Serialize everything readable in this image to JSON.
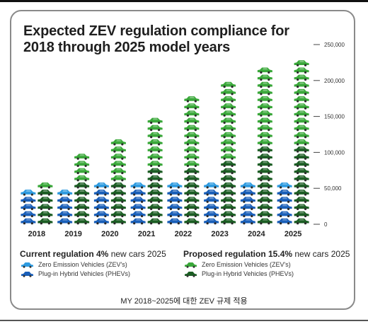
{
  "title": "Expected ZEV regulation compliance for 2018 through 2025 model years",
  "caption": "MY 2018~2025에 대한 ZEV 규제 적용",
  "legend": {
    "current": {
      "head_bold": "Current regulation 4%",
      "head_rest": " new cars 2025",
      "items": [
        {
          "label": "Zero Emission Vehicles (ZEV's)",
          "color": "#2e9be0"
        },
        {
          "label": "Plug-in Hybrid Vehicles (PHEVs)",
          "color": "#1a5fb8"
        }
      ]
    },
    "proposed": {
      "head_bold": "Proposed regulation 15.4%",
      "head_rest": " new cars 2025",
      "items": [
        {
          "label": "Zero Emission Vehicles (ZEV's)",
          "color": "#3aa83a"
        },
        {
          "label": "Plug-in Hybrid Vehicles (PHEVs)",
          "color": "#1c5e24"
        }
      ]
    }
  },
  "chart_data": {
    "type": "bar",
    "categories": [
      "2018",
      "2019",
      "2020",
      "2021",
      "2022",
      "2023",
      "2024",
      "2025"
    ],
    "yticks": [
      "0",
      "50,000",
      "100,000",
      "150,000",
      "200,000",
      "250,000"
    ],
    "ylim": [
      0,
      250000
    ],
    "series": [
      {
        "name": "Current regulation — Zero Emission Vehicles (ZEV's)",
        "values": [
          10000,
          10000,
          10000,
          10000,
          10000,
          10000,
          10000,
          10000
        ],
        "color": "#2e9be0"
      },
      {
        "name": "Current regulation — Plug-in Hybrid Vehicles (PHEVs)",
        "values": [
          40000,
          40000,
          45000,
          45000,
          45000,
          45000,
          45000,
          45000
        ],
        "color": "#1a5fb8"
      },
      {
        "name": "Proposed regulation — Zero Emission Vehicles (ZEV's)",
        "values": [
          10000,
          35000,
          55000,
          65000,
          95000,
          105000,
          105000,
          120000
        ],
        "color": "#3aa83a"
      },
      {
        "name": "Proposed regulation — Plug-in Hybrid Vehicles (PHEVs)",
        "values": [
          50000,
          60000,
          60000,
          75000,
          75000,
          85000,
          105000,
          110000
        ],
        "color": "#1c5e24"
      }
    ]
  }
}
